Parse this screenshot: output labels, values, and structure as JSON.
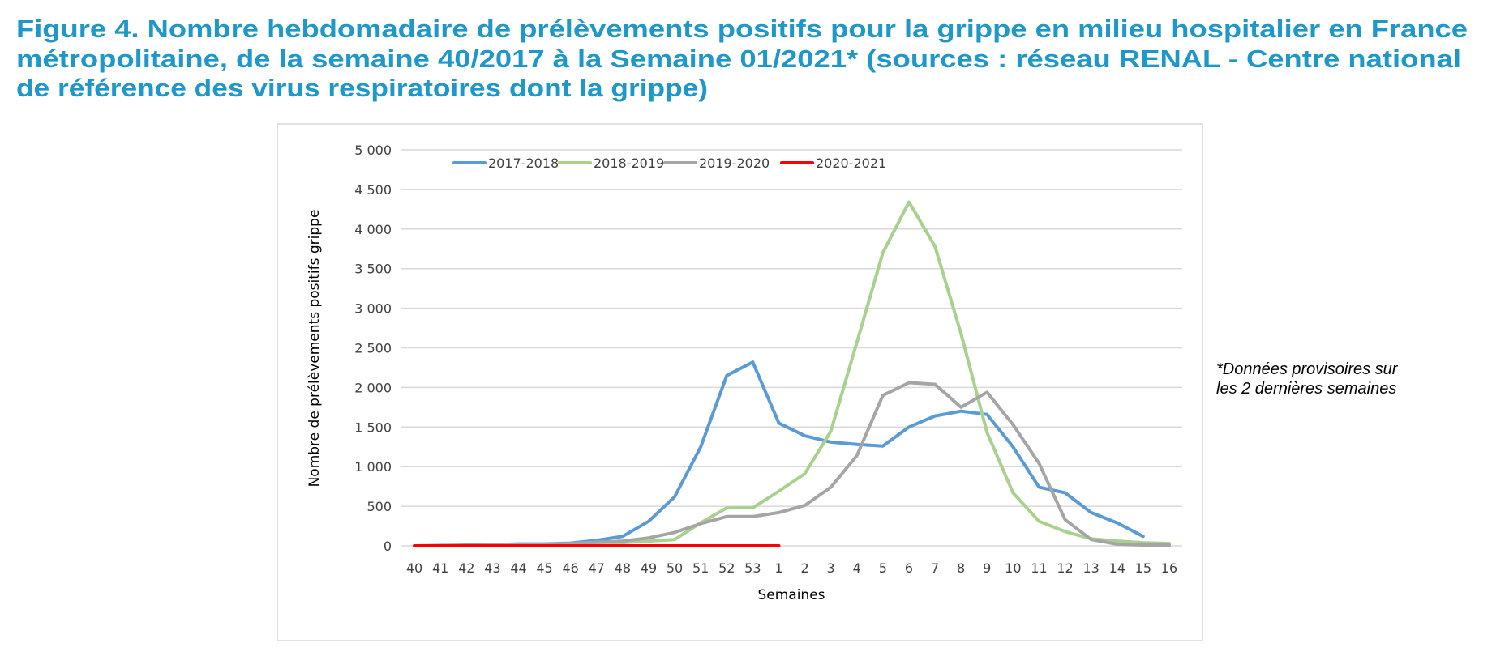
{
  "title_lines": [
    "Figure 4. Nombre hebdomadaire de prélèvements positifs pour la grippe en milieu hospitalier en France",
    "métropolitaine, de la semaine 40/2017 à la Semaine 01/2021* (sources : réseau RENAL - Centre national",
    "de référence des virus respiratoires dont la grippe)"
  ],
  "note_lines": [
    "*Données provisoires sur",
    "les 2 dernières semaines"
  ],
  "chart_data": {
    "type": "line",
    "xlabel": "Semaines",
    "ylabel": "Nombre de prélèvements positifs grippe",
    "ylim": [
      0,
      5000
    ],
    "yticks": [
      "0",
      "500",
      "1 000",
      "1 500",
      "2 000",
      "2 500",
      "3 000",
      "3 500",
      "4 000",
      "4 500",
      "5 000"
    ],
    "categories": [
      "40",
      "41",
      "42",
      "43",
      "44",
      "45",
      "46",
      "47",
      "48",
      "49",
      "50",
      "51",
      "52",
      "53",
      "1",
      "2",
      "3",
      "4",
      "5",
      "6",
      "7",
      "8",
      "9",
      "10",
      "11",
      "12",
      "13",
      "14",
      "15",
      "16"
    ],
    "grid": "horizontal",
    "legend_position": "top",
    "series": [
      {
        "name": "2017-2018",
        "color": "#5b9bd5",
        "values": [
          0,
          5,
          10,
          15,
          25,
          25,
          35,
          70,
          120,
          310,
          620,
          1250,
          2150,
          2320,
          1550,
          1390,
          1310,
          1280,
          1260,
          1500,
          1640,
          1700,
          1660,
          1250,
          740,
          670,
          420,
          290,
          120,
          null
        ]
      },
      {
        "name": "2018-2019",
        "color": "#a9d18e",
        "values": [
          0,
          0,
          5,
          5,
          10,
          15,
          20,
          30,
          40,
          60,
          80,
          290,
          480,
          480,
          690,
          910,
          1450,
          2570,
          3700,
          4340,
          3780,
          2680,
          1430,
          670,
          310,
          180,
          90,
          60,
          40,
          30
        ]
      },
      {
        "name": "2019-2020",
        "color": "#a5a5a5",
        "values": [
          0,
          0,
          5,
          10,
          15,
          20,
          30,
          45,
          60,
          100,
          170,
          280,
          370,
          370,
          420,
          510,
          740,
          1140,
          1900,
          2060,
          2040,
          1750,
          1940,
          1530,
          1040,
          330,
          80,
          20,
          10,
          10
        ]
      },
      {
        "name": "2020-2021",
        "color": "#ff0000",
        "values": [
          0,
          0,
          0,
          0,
          0,
          0,
          0,
          0,
          0,
          0,
          0,
          0,
          0,
          0,
          0,
          null,
          null,
          null,
          null,
          null,
          null,
          null,
          null,
          null,
          null,
          null,
          null,
          null,
          null,
          null
        ]
      }
    ]
  }
}
